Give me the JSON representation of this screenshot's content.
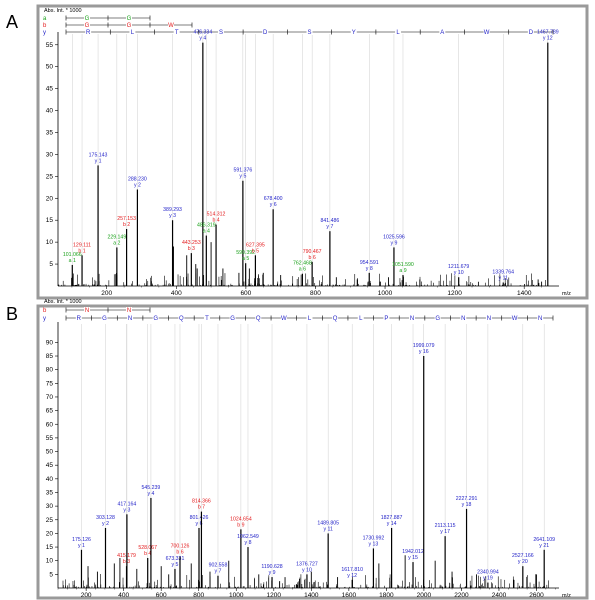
{
  "colors": {
    "b_ion": "#e31a1c",
    "y_ion": "#2323c8",
    "a_ion": "#19a019",
    "spectrum": "#000000",
    "frame": "#9a9a9a"
  },
  "chart_data": [
    {
      "type": "spectrum",
      "panel_label": "A",
      "ylabel": "Abs. Int. * 1000",
      "xlabel": "m/z",
      "xlim": [
        60,
        1500
      ],
      "ylim": [
        0,
        57
      ],
      "x_ticks": [
        200,
        400,
        600,
        800,
        1000,
        1200,
        1400
      ],
      "y_ticks": [
        5,
        10,
        15,
        20,
        25,
        30,
        35,
        40,
        45,
        50,
        55
      ],
      "ladders": [
        {
          "series": "a",
          "color": "#19a019",
          "residues": [
            "G",
            "G"
          ]
        },
        {
          "series": "b",
          "color": "#e31a1c",
          "residues": [
            "G",
            "G",
            "W"
          ]
        },
        {
          "series": "y",
          "color": "#2323c8",
          "residues": [
            "R",
            "L",
            "T",
            "S",
            "D",
            "S",
            "Y",
            "L",
            "A",
            "W",
            "D"
          ]
        }
      ],
      "ladder_side_labels": [
        "a",
        "b",
        "y"
      ],
      "peaks": [
        {
          "mz": 101.066,
          "label": "101.066",
          "ion": "a 1",
          "intensity": 4.8,
          "series": "a"
        },
        {
          "mz": 129.111,
          "label": "129.111",
          "ion": "b 1",
          "intensity": 7.0,
          "series": "b"
        },
        {
          "mz": 175.143,
          "label": "175.143",
          "ion": "y 1",
          "intensity": 27.5,
          "series": "y"
        },
        {
          "mz": 229.149,
          "label": "229.149",
          "ion": "a 2",
          "intensity": 8.8,
          "series": "a"
        },
        {
          "mz": 257.153,
          "label": "257.153",
          "ion": "b 2",
          "intensity": 13.0,
          "series": "b"
        },
        {
          "mz": 288.23,
          "label": "288.230",
          "ion": "y 2",
          "intensity": 22.0,
          "series": "y"
        },
        {
          "mz": 389.293,
          "label": "389.293",
          "ion": "y 3",
          "intensity": 15.0,
          "series": "y"
        },
        {
          "mz": 443.253,
          "label": "443.253",
          "ion": "b 3",
          "intensity": 7.5,
          "series": "b"
        },
        {
          "mz": 476.334,
          "label": "476.334",
          "ion": "y 4",
          "intensity": 55.5,
          "series": "y"
        },
        {
          "mz": 486.319,
          "label": "486.319",
          "ion": "a 4",
          "intensity": 11.5,
          "series": "a"
        },
        {
          "mz": 514.312,
          "label": "514.312",
          "ion": "b 4",
          "intensity": 14.0,
          "series": "b"
        },
        {
          "mz": 591.376,
          "label": "591.376",
          "ion": "y 5",
          "intensity": 24.0,
          "series": "y"
        },
        {
          "mz": 599.392,
          "label": "599.392",
          "ion": "a 5",
          "intensity": 5.2,
          "series": "a"
        },
        {
          "mz": 627.395,
          "label": "627.395",
          "ion": "b 5",
          "intensity": 7.0,
          "series": "b"
        },
        {
          "mz": 678.4,
          "label": "678.400",
          "ion": "y 6",
          "intensity": 17.5,
          "series": "y"
        },
        {
          "mz": 762.468,
          "label": "762.468",
          "ion": "a 6",
          "intensity": 2.8,
          "series": "a"
        },
        {
          "mz": 790.467,
          "label": "790.467",
          "ion": "b 6",
          "intensity": 5.5,
          "series": "b"
        },
        {
          "mz": 841.486,
          "label": "841.486",
          "ion": "y 7",
          "intensity": 12.5,
          "series": "y"
        },
        {
          "mz": 954.591,
          "label": "954.591",
          "ion": "y 8",
          "intensity": 3.0,
          "series": "y"
        },
        {
          "mz": 1025.596,
          "label": "1025.596",
          "ion": "y 9",
          "intensity": 8.8,
          "series": "y"
        },
        {
          "mz": 1051.59,
          "label": "1051.590",
          "ion": "a 9",
          "intensity": 2.5,
          "series": "a"
        },
        {
          "mz": 1211.679,
          "label": "1211.679",
          "ion": "y 10",
          "intensity": 2.0,
          "series": "y"
        },
        {
          "mz": 1339.764,
          "label": "1339.764",
          "ion": "y 11",
          "intensity": 0.8,
          "series": "y"
        },
        {
          "mz": 1467.789,
          "label": "1467.789",
          "ion": "y 12",
          "intensity": 55.5,
          "series": "y"
        }
      ],
      "extra_peaks": [
        {
          "mz": 392,
          "intensity": 9
        },
        {
          "mz": 430,
          "intensity": 7
        },
        {
          "mz": 456,
          "intensity": 5
        },
        {
          "mz": 460,
          "intensity": 4
        },
        {
          "mz": 500,
          "intensity": 10
        },
        {
          "mz": 534,
          "intensity": 4
        },
        {
          "mz": 580,
          "intensity": 3
        },
        {
          "mz": 610,
          "intensity": 4
        },
        {
          "mz": 650,
          "intensity": 3
        },
        {
          "mz": 700,
          "intensity": 2.5
        },
        {
          "mz": 860,
          "intensity": 2
        },
        {
          "mz": 920,
          "intensity": 1.5
        },
        {
          "mz": 1010,
          "intensity": 2
        },
        {
          "mz": 1100,
          "intensity": 1.5
        },
        {
          "mz": 1440,
          "intensity": 1.5
        },
        {
          "mz": 1450,
          "intensity": 1
        }
      ]
    },
    {
      "type": "spectrum",
      "panel_label": "B",
      "ylabel": "Abs. Int. * 1000",
      "xlabel": "m/z",
      "xlim": [
        50,
        2720
      ],
      "ylim": [
        0,
        96
      ],
      "x_ticks": [
        200,
        400,
        600,
        800,
        1000,
        1200,
        1400,
        1600,
        1800,
        2000,
        2200,
        2400,
        2600
      ],
      "y_ticks": [
        5,
        10,
        15,
        20,
        25,
        30,
        35,
        40,
        45,
        50,
        55,
        60,
        65,
        70,
        75,
        80,
        85,
        90
      ],
      "ladders": [
        {
          "series": "b",
          "color": "#e31a1c",
          "residues": [
            "N",
            "N"
          ]
        },
        {
          "series": "y",
          "color": "#2323c8",
          "residues": [
            "R",
            "G",
            "N",
            "G",
            "Q",
            "T",
            "G",
            "Q",
            "W",
            "L",
            "Q",
            "L",
            "P",
            "N",
            "G",
            "N",
            "N",
            "W",
            "N"
          ]
        }
      ],
      "ladder_side_labels": [
        "b",
        "y"
      ],
      "peaks": [
        {
          "mz": 175.126,
          "label": "175.126",
          "ion": "y 1",
          "intensity": 14.0,
          "series": "y"
        },
        {
          "mz": 303.128,
          "label": "303.128",
          "ion": "y 2",
          "intensity": 22.0,
          "series": "y"
        },
        {
          "mz": 415.179,
          "label": "415.179",
          "ion": "b 3",
          "intensity": 8.0,
          "series": "b"
        },
        {
          "mz": 417.164,
          "label": "417.164",
          "ion": "y 3",
          "intensity": 27.0,
          "series": "y"
        },
        {
          "mz": 528.067,
          "label": "528.067",
          "ion": "b 4",
          "intensity": 11.0,
          "series": "b"
        },
        {
          "mz": 545.239,
          "label": "545.239",
          "ion": "y 4",
          "intensity": 33.0,
          "series": "y"
        },
        {
          "mz": 673.331,
          "label": "673.331",
          "ion": "y 5",
          "intensity": 7.0,
          "series": "y"
        },
        {
          "mz": 700.126,
          "label": "700.126",
          "ion": "b 6",
          "intensity": 11.5,
          "series": "b"
        },
        {
          "mz": 801.426,
          "label": "801.426",
          "ion": "y 6",
          "intensity": 22.0,
          "series": "y"
        },
        {
          "mz": 814.366,
          "label": "814.366",
          "ion": "b 7",
          "intensity": 28.0,
          "series": "b"
        },
        {
          "mz": 902.558,
          "label": "902.558",
          "ion": "y 7",
          "intensity": 4.5,
          "series": "y"
        },
        {
          "mz": 1024.654,
          "label": "1024.654",
          "ion": "b 9",
          "intensity": 21.5,
          "series": "b"
        },
        {
          "mz": 1062.549,
          "label": "1062.549",
          "ion": "y 8",
          "intensity": 15.0,
          "series": "y"
        },
        {
          "mz": 1190.628,
          "label": "1190.628",
          "ion": "y 9",
          "intensity": 4.0,
          "series": "y"
        },
        {
          "mz": 1376.727,
          "label": "1376.727",
          "ion": "y 10",
          "intensity": 5.0,
          "series": "y"
        },
        {
          "mz": 1489.805,
          "label": "1489.805",
          "ion": "y 11",
          "intensity": 20.0,
          "series": "y"
        },
        {
          "mz": 1617.81,
          "label": "1617.810",
          "ion": "y 12",
          "intensity": 3.0,
          "series": "y"
        },
        {
          "mz": 1730.992,
          "label": "1730.992",
          "ion": "y 13",
          "intensity": 14.5,
          "series": "y"
        },
        {
          "mz": 1827.887,
          "label": "1827.887",
          "ion": "y 14",
          "intensity": 22.0,
          "series": "y"
        },
        {
          "mz": 1942.012,
          "label": "1942.012",
          "ion": "y 15",
          "intensity": 9.5,
          "series": "y"
        },
        {
          "mz": 1999.079,
          "label": "1999.079",
          "ion": "y 16",
          "intensity": 85.0,
          "series": "y"
        },
        {
          "mz": 2113.115,
          "label": "2113.115",
          "ion": "y 17",
          "intensity": 19.0,
          "series": "y"
        },
        {
          "mz": 2227.291,
          "label": "2227.291",
          "ion": "y 18",
          "intensity": 29.0,
          "series": "y"
        },
        {
          "mz": 2340.994,
          "label": "2340.994",
          "ion": "y 19",
          "intensity": 2.0,
          "series": "y"
        },
        {
          "mz": 2527.166,
          "label": "2527.166",
          "ion": "y 20",
          "intensity": 8.0,
          "series": "y"
        },
        {
          "mz": 2641.109,
          "label": "2641.109",
          "ion": "y 21",
          "intensity": 14.0,
          "series": "y"
        }
      ],
      "extra_peaks": [
        {
          "mz": 210,
          "intensity": 8
        },
        {
          "mz": 260,
          "intensity": 6
        },
        {
          "mz": 350,
          "intensity": 9
        },
        {
          "mz": 380,
          "intensity": 11
        },
        {
          "mz": 470,
          "intensity": 7
        },
        {
          "mz": 600,
          "intensity": 8
        },
        {
          "mz": 640,
          "intensity": 5
        },
        {
          "mz": 760,
          "intensity": 9
        },
        {
          "mz": 860,
          "intensity": 6
        },
        {
          "mz": 960,
          "intensity": 10
        },
        {
          "mz": 1120,
          "intensity": 5
        },
        {
          "mz": 1260,
          "intensity": 4
        },
        {
          "mz": 1400,
          "intensity": 6
        },
        {
          "mz": 1540,
          "intensity": 4
        },
        {
          "mz": 1760,
          "intensity": 9
        },
        {
          "mz": 1900,
          "intensity": 12
        },
        {
          "mz": 2060,
          "intensity": 10
        },
        {
          "mz": 2150,
          "intensity": 6
        },
        {
          "mz": 2280,
          "intensity": 5
        },
        {
          "mz": 2480,
          "intensity": 3
        },
        {
          "mz": 2600,
          "intensity": 5
        }
      ]
    }
  ]
}
